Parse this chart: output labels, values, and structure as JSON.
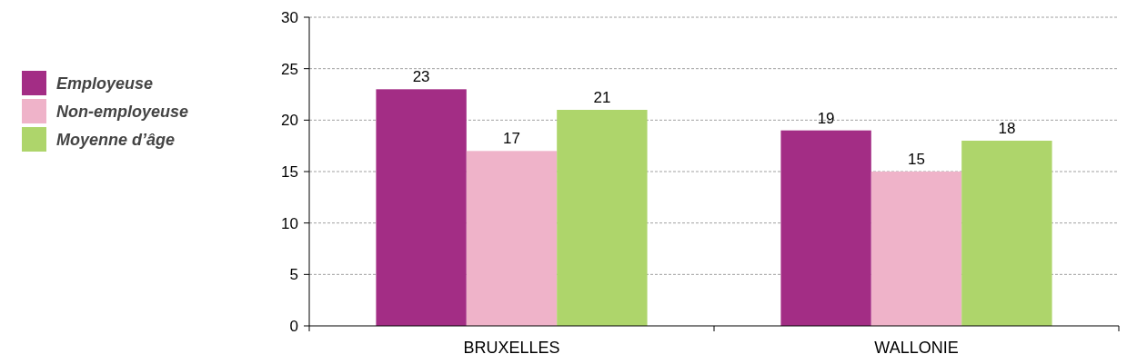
{
  "chart_data": {
    "type": "bar",
    "categories": [
      "BRUXELLES",
      "WALLONIE"
    ],
    "series": [
      {
        "name": "Employeuse",
        "color": "#a32d85",
        "values": [
          23,
          19
        ]
      },
      {
        "name": "Non-employeuse",
        "color": "#efb3c9",
        "values": [
          17,
          15
        ]
      },
      {
        "name": "Moyenne d’âge",
        "color": "#aed56b",
        "values": [
          21,
          18
        ]
      }
    ],
    "ylim": [
      0,
      30
    ],
    "yticks": [
      0,
      5,
      10,
      15,
      20,
      25,
      30
    ],
    "grid": "y",
    "legend": "left",
    "data_labels": true
  }
}
